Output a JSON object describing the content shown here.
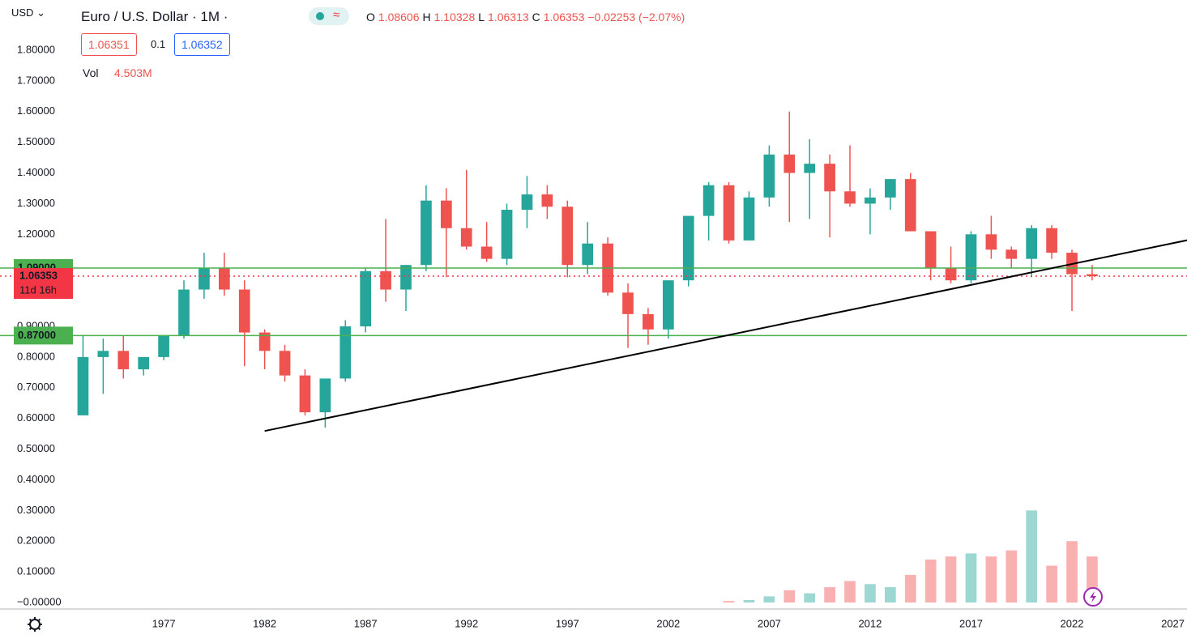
{
  "header": {
    "currency": "USD",
    "symbol": "Euro / U.S. Dollar · 1M ·",
    "ohlc": [
      {
        "key": "O",
        "value": "1.08606"
      },
      {
        "key": "H",
        "value": "1.10328"
      },
      {
        "key": "L",
        "value": "1.06313"
      },
      {
        "key": "C",
        "value": "1.06353"
      }
    ],
    "change": "−0.02253 (−2.07%)",
    "bid": "1.06351",
    "spread": "0.1",
    "ask": "1.06352",
    "vol_label": "Vol",
    "vol_value": "4.503M"
  },
  "chart_data": {
    "type": "candlestick",
    "x": [
      1973,
      1974,
      1975,
      1976,
      1977,
      1978,
      1979,
      1980,
      1981,
      1982,
      1983,
      1984,
      1985,
      1986,
      1987,
      1988,
      1989,
      1990,
      1991,
      1992,
      1993,
      1994,
      1995,
      1996,
      1997,
      1998,
      1999,
      2000,
      2001,
      2002,
      2003,
      2004,
      2005,
      2006,
      2007,
      2008,
      2009,
      2010,
      2011,
      2012,
      2013,
      2014,
      2015,
      2016,
      2017,
      2018,
      2019,
      2020,
      2021,
      2022,
      2023
    ],
    "open": [
      0.61,
      0.8,
      0.82,
      0.76,
      0.8,
      0.87,
      1.02,
      1.09,
      1.02,
      0.88,
      0.82,
      0.74,
      0.62,
      0.73,
      0.9,
      1.08,
      1.02,
      1.1,
      1.31,
      1.22,
      1.16,
      1.12,
      1.28,
      1.33,
      1.29,
      1.1,
      1.17,
      1.01,
      0.94,
      0.89,
      1.05,
      1.26,
      1.36,
      1.18,
      1.32,
      1.46,
      1.4,
      1.43,
      1.34,
      1.3,
      1.32,
      1.38,
      1.21,
      1.09,
      1.05,
      1.2,
      1.15,
      1.12,
      1.22,
      1.14,
      1.07
    ],
    "high": [
      0.87,
      0.86,
      0.87,
      0.79,
      0.87,
      1.05,
      1.14,
      1.14,
      1.05,
      0.89,
      0.84,
      0.76,
      0.72,
      0.92,
      1.09,
      1.25,
      1.1,
      1.36,
      1.35,
      1.41,
      1.24,
      1.3,
      1.39,
      1.36,
      1.31,
      1.24,
      1.19,
      1.04,
      0.96,
      1.05,
      1.26,
      1.37,
      1.37,
      1.34,
      1.49,
      1.6,
      1.51,
      1.46,
      1.49,
      1.35,
      1.38,
      1.4,
      1.21,
      1.16,
      1.21,
      1.26,
      1.16,
      1.23,
      1.23,
      1.15,
      1.1
    ],
    "low": [
      0.61,
      0.68,
      0.73,
      0.74,
      0.79,
      0.86,
      0.99,
      1.0,
      0.77,
      0.76,
      0.72,
      0.61,
      0.57,
      0.72,
      0.88,
      0.98,
      0.95,
      1.08,
      1.06,
      1.15,
      1.11,
      1.1,
      1.22,
      1.25,
      1.06,
      1.07,
      1.0,
      0.83,
      0.84,
      0.86,
      1.03,
      1.18,
      1.17,
      1.18,
      1.29,
      1.24,
      1.25,
      1.19,
      1.29,
      1.2,
      1.28,
      1.21,
      1.05,
      1.04,
      1.04,
      1.12,
      1.09,
      1.06,
      1.12,
      0.95,
      1.05
    ],
    "close": [
      0.8,
      0.82,
      0.76,
      0.8,
      0.87,
      1.02,
      1.09,
      1.02,
      0.88,
      0.82,
      0.74,
      0.62,
      0.73,
      0.9,
      1.08,
      1.02,
      1.1,
      1.31,
      1.22,
      1.16,
      1.12,
      1.28,
      1.33,
      1.29,
      1.1,
      1.17,
      1.01,
      0.94,
      0.89,
      1.05,
      1.26,
      1.36,
      1.18,
      1.32,
      1.46,
      1.4,
      1.43,
      1.34,
      1.3,
      1.32,
      1.38,
      1.21,
      1.09,
      1.05,
      1.2,
      1.15,
      1.12,
      1.22,
      1.14,
      1.07,
      1.06353
    ],
    "volume": [
      null,
      null,
      null,
      null,
      null,
      null,
      null,
      null,
      null,
      null,
      null,
      null,
      null,
      null,
      null,
      null,
      null,
      null,
      null,
      null,
      null,
      null,
      null,
      null,
      null,
      null,
      null,
      null,
      null,
      null,
      null,
      null,
      0.005,
      0.008,
      0.02,
      0.04,
      0.03,
      0.05,
      0.07,
      0.06,
      0.05,
      0.09,
      0.14,
      0.15,
      0.16,
      0.15,
      0.17,
      0.3,
      0.12,
      0.2,
      0.15
    ],
    "up_color": "#26a69a",
    "down_color": "#ef5350",
    "xlim": [
      1972.5,
      2027.7
    ],
    "xticks": [
      1977,
      1982,
      1987,
      1992,
      1997,
      2002,
      2007,
      2012,
      2017,
      2022,
      2027
    ],
    "ylim": [
      0,
      1.8
    ],
    "yticks": [
      {
        "value": 0,
        "label": "−0.00000"
      },
      {
        "value": 0.1,
        "label": "0.10000"
      },
      {
        "value": 0.2,
        "label": "0.20000"
      },
      {
        "value": 0.3,
        "label": "0.30000"
      },
      {
        "value": 0.4,
        "label": "0.40000"
      },
      {
        "value": 0.5,
        "label": "0.50000"
      },
      {
        "value": 0.6,
        "label": "0.60000"
      },
      {
        "value": 0.7,
        "label": "0.70000"
      },
      {
        "value": 0.8,
        "label": "0.80000"
      },
      {
        "value": 0.9,
        "label": "0.90000"
      },
      {
        "value": 1.2,
        "label": "1.20000"
      },
      {
        "value": 1.3,
        "label": "1.30000"
      },
      {
        "value": 1.4,
        "label": "1.40000"
      },
      {
        "value": 1.5,
        "label": "1.50000"
      },
      {
        "value": 1.6,
        "label": "1.60000"
      },
      {
        "value": 1.7,
        "label": "1.70000"
      },
      {
        "value": 1.8,
        "label": "1.80000"
      }
    ],
    "grid": false,
    "hlines": [
      {
        "value": 1.09,
        "label": "1.09000",
        "color": "#4caf50"
      },
      {
        "value": 0.87,
        "label": "0.87000",
        "color": "#4caf50"
      }
    ],
    "last_price": {
      "value": 1.06353,
      "label": "1.06353",
      "countdown": "11d 16h",
      "color": "#f23645"
    },
    "trendline": {
      "x": [
        1982.0,
        2027.8
      ],
      "y": [
        0.559,
        1.182
      ],
      "color": "#000000"
    }
  }
}
